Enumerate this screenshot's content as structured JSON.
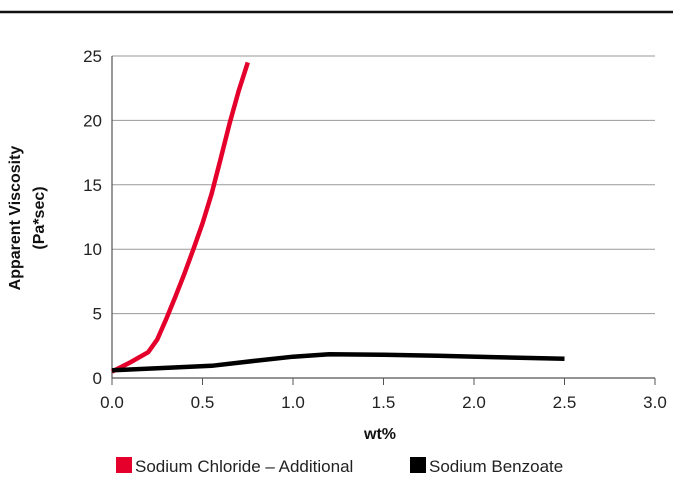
{
  "chart_data": {
    "type": "line",
    "xlabel": "wt%",
    "ylabel_line1": "Apparent Viscosity",
    "ylabel_line2": "(Pa*sec)",
    "xlim": [
      0,
      3.0
    ],
    "ylim": [
      0,
      25
    ],
    "x_ticks": [
      "0.0",
      "0.5",
      "1.0",
      "1.5",
      "2.0",
      "2.5",
      "3.0"
    ],
    "y_ticks": [
      "0",
      "5",
      "10",
      "15",
      "20",
      "25"
    ],
    "grid": "horizontal",
    "legend_position": "bottom",
    "series": [
      {
        "name": "Sodium Chloride – Additional",
        "color": "#e4002b",
        "x": [
          0.0,
          0.1,
          0.2,
          0.25,
          0.3,
          0.35,
          0.4,
          0.45,
          0.5,
          0.55,
          0.6,
          0.65,
          0.7,
          0.75
        ],
        "y": [
          0.5,
          1.2,
          2.0,
          3.0,
          4.6,
          6.3,
          8.1,
          10.0,
          12.0,
          14.3,
          17.0,
          19.8,
          22.3,
          24.5
        ]
      },
      {
        "name": "Sodium Benzoate",
        "color": "#000000",
        "x": [
          0.0,
          0.25,
          0.55,
          0.8,
          1.0,
          1.2,
          1.5,
          1.8,
          2.1,
          2.5
        ],
        "y": [
          0.6,
          0.75,
          0.95,
          1.35,
          1.65,
          1.85,
          1.8,
          1.72,
          1.62,
          1.5
        ]
      }
    ]
  }
}
